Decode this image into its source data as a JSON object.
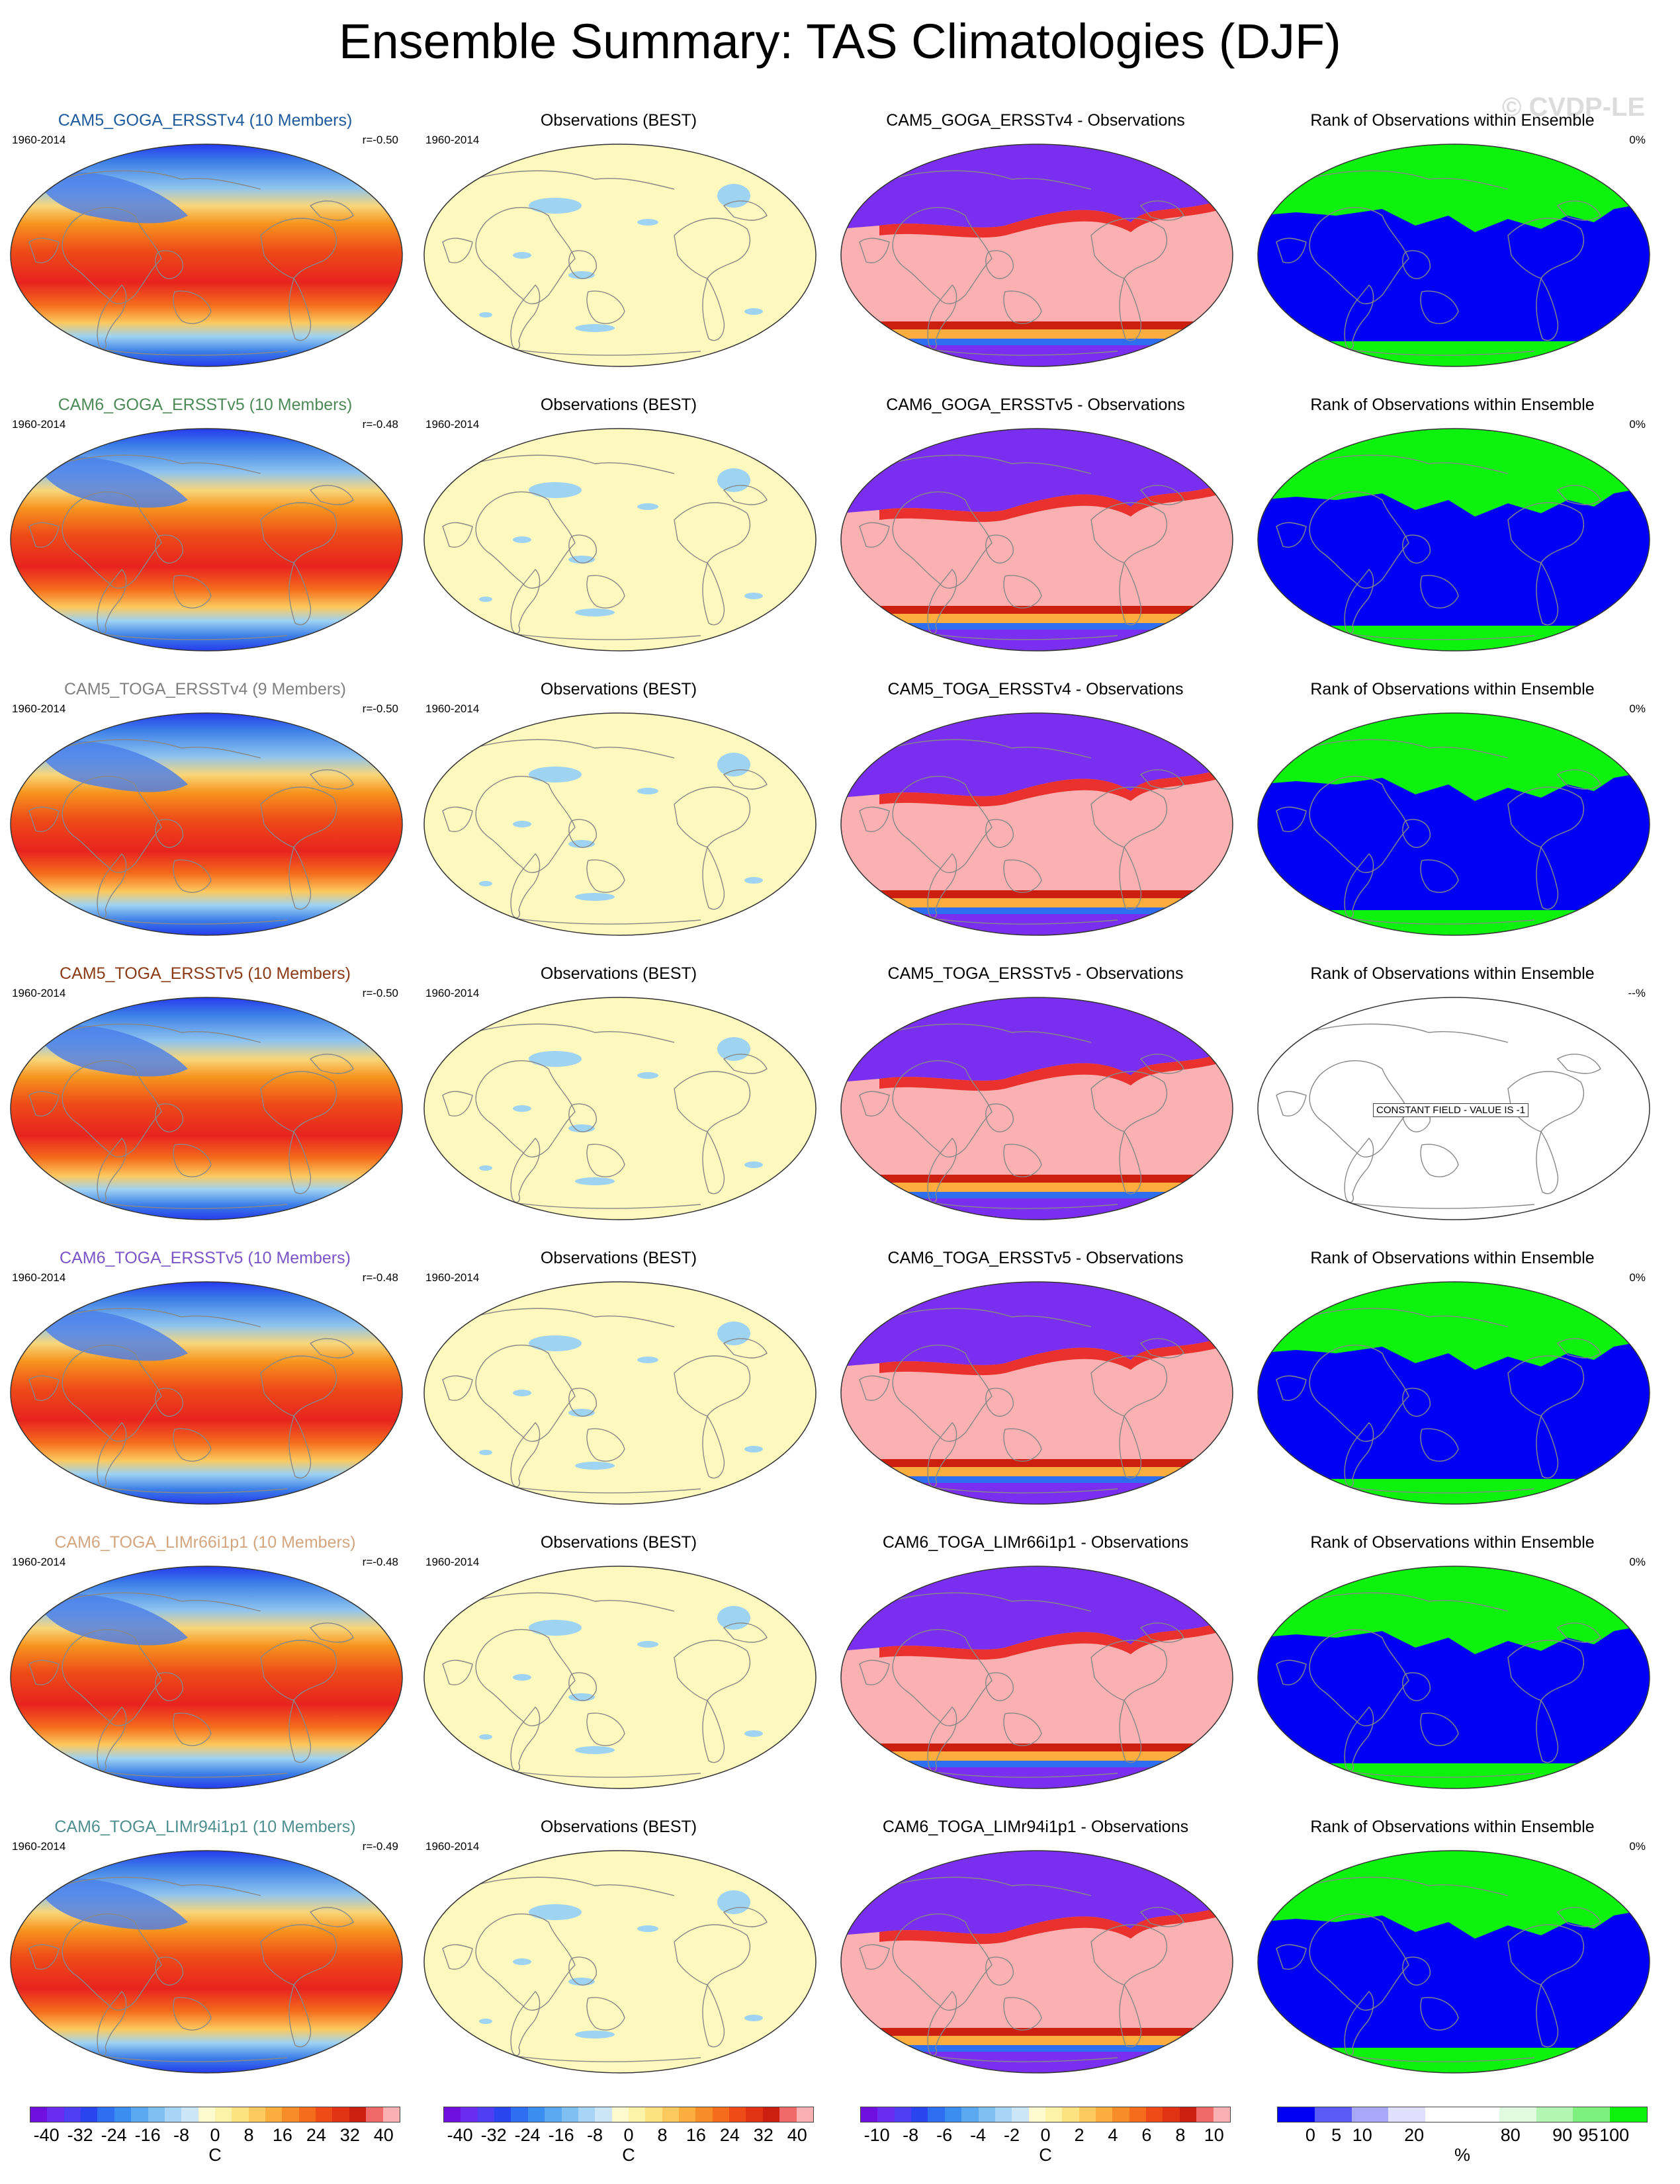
{
  "page_title": "Ensemble Summary: TAS Climatologies (DJF)",
  "watermark": "© CVDP-LE",
  "period": "1960-2014",
  "obs_title": "Observations (BEST)",
  "rank_title": "Rank of Observations within Ensemble",
  "constant_field_label": "CONSTANT FIELD - VALUE IS -1",
  "colors": {
    "deep_purple": "#7a2ef0",
    "blue": "#2535ee",
    "light_blue": "#9fd3f2",
    "cream": "#fdf8bd",
    "orange": "#f7941e",
    "red": "#e8231f",
    "pink": "#fbb1b1",
    "rank_blue": "#0000f5",
    "rank_green": "#0cf20c",
    "land_outline": "#888888"
  },
  "rows": [
    {
      "model": "CAM5_GOGA_ERSSTv4 (10 Members)",
      "model_color": "#1f5a9c",
      "r": "r=-0.50",
      "diff_title": "CAM5_GOGA_ERSSTv4 - Observations",
      "rank_pct": "0%",
      "rank_constant": false
    },
    {
      "model": "CAM6_GOGA_ERSSTv5 (10 Members)",
      "model_color": "#4d8a58",
      "r": "r=-0.48",
      "diff_title": "CAM6_GOGA_ERSSTv5 - Observations",
      "rank_pct": "0%",
      "rank_constant": false
    },
    {
      "model": "CAM5_TOGA_ERSSTv4 (9 Members)",
      "model_color": "#808080",
      "r": "r=-0.50",
      "diff_title": "CAM5_TOGA_ERSSTv4 - Observations",
      "rank_pct": "0%",
      "rank_constant": false
    },
    {
      "model": "CAM5_TOGA_ERSSTv5 (10 Members)",
      "model_color": "#8b3a16",
      "r": "r=-0.50",
      "diff_title": "CAM5_TOGA_ERSSTv5 - Observations",
      "rank_pct": "--%",
      "rank_constant": true
    },
    {
      "model": "CAM6_TOGA_ERSSTv5 (10 Members)",
      "model_color": "#7a55c8",
      "r": "r=-0.48",
      "diff_title": "CAM6_TOGA_ERSSTv5 - Observations",
      "rank_pct": "0%",
      "rank_constant": false
    },
    {
      "model": "CAM6_TOGA_LIMr66i1p1 (10 Members)",
      "model_color": "#d4a67f",
      "r": "r=-0.48",
      "diff_title": "CAM6_TOGA_LIMr66i1p1 - Observations",
      "rank_pct": "0%",
      "rank_constant": false
    },
    {
      "model": "CAM6_TOGA_LIMr94i1p1 (10 Members)",
      "model_color": "#4f8f8f",
      "r": "r=-0.49",
      "diff_title": "CAM6_TOGA_LIMr94i1p1 - Observations",
      "rank_pct": "0%",
      "rank_constant": false
    }
  ],
  "colorbars": [
    {
      "name": "tas",
      "unit": "C",
      "ticks": [
        "-40",
        "-32",
        "-24",
        "-16",
        "-8",
        "0",
        "8",
        "16",
        "24",
        "32",
        "40"
      ],
      "colors": [
        "#7010e0",
        "#6a2cf0",
        "#4f3ff4",
        "#2a45f0",
        "#2d6ff0",
        "#3b8ef0",
        "#5aa8f0",
        "#80c0f0",
        "#a8d5f5",
        "#cde6f7",
        "#fdfad0",
        "#fdf3a8",
        "#fde282",
        "#fcc95e",
        "#fbad3e",
        "#f78d28",
        "#f56c1c",
        "#ee4b18",
        "#e23214",
        "#cc1f10",
        "#f06a6a",
        "#fbb1b1"
      ]
    },
    {
      "name": "obs",
      "unit": "C",
      "ticks": [
        "-40",
        "-32",
        "-24",
        "-16",
        "-8",
        "0",
        "8",
        "16",
        "24",
        "32",
        "40"
      ],
      "colors": [
        "#7010e0",
        "#6a2cf0",
        "#4f3ff4",
        "#2a45f0",
        "#2d6ff0",
        "#3b8ef0",
        "#5aa8f0",
        "#80c0f0",
        "#a8d5f5",
        "#cde6f7",
        "#fdfad0",
        "#fdf3a8",
        "#fde282",
        "#fcc95e",
        "#fbad3e",
        "#f78d28",
        "#f56c1c",
        "#ee4b18",
        "#e23214",
        "#cc1f10",
        "#f06a6a",
        "#fbb1b1"
      ]
    },
    {
      "name": "diff",
      "unit": "C",
      "ticks": [
        "-10",
        "-8",
        "-6",
        "-4",
        "-2",
        "0",
        "2",
        "4",
        "6",
        "8",
        "10"
      ],
      "colors": [
        "#7010e0",
        "#6a2cf0",
        "#4f3ff4",
        "#2a45f0",
        "#2d6ff0",
        "#3b8ef0",
        "#5aa8f0",
        "#80c0f0",
        "#a8d5f5",
        "#cde6f7",
        "#fdfad0",
        "#fdf3a8",
        "#fde282",
        "#fcc95e",
        "#fbad3e",
        "#f78d28",
        "#f56c1c",
        "#ee4b18",
        "#e23214",
        "#cc1f10",
        "#f06a6a",
        "#fbb1b1"
      ]
    },
    {
      "name": "rank",
      "unit": "%",
      "ticks": [
        "0",
        "5",
        "10",
        "20",
        "80",
        "90",
        "95",
        "100"
      ],
      "tick_pos": [
        0.09,
        0.16,
        0.23,
        0.37,
        0.63,
        0.77,
        0.84,
        0.91
      ],
      "colors": [
        "#0000f5",
        "#5a5af7",
        "#a8a8f9",
        "#e0e0fc",
        "#ffffff",
        "#ffffff",
        "#e0fbe0",
        "#b3f5b3",
        "#7ef07e",
        "#0cf20c"
      ]
    }
  ]
}
